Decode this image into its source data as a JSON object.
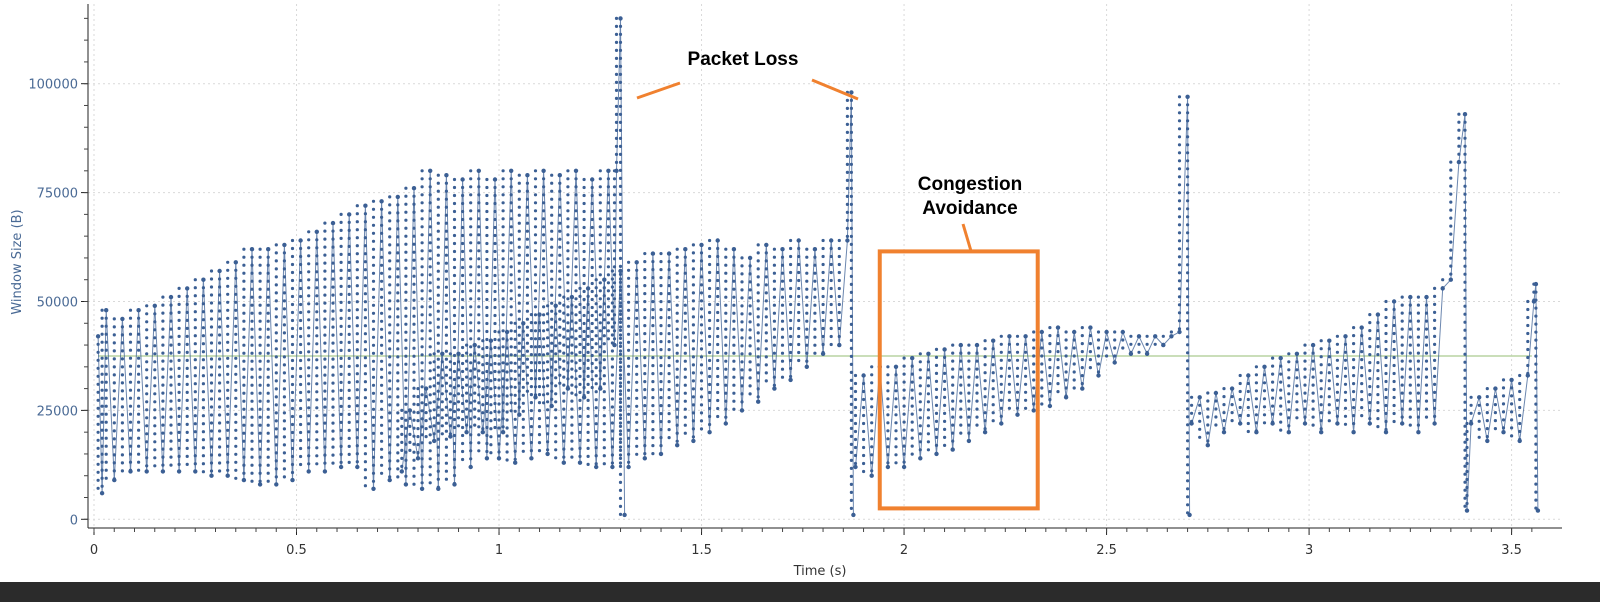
{
  "chart_data": {
    "type": "line",
    "xlabel": "Time (s)",
    "ylabel": "Window Size (B)",
    "xlim": [
      0,
      3.58
    ],
    "ylim": [
      -2000,
      116000
    ],
    "xticks": [
      "0",
      "0.5",
      "1",
      "1.5",
      "2",
      "2.5",
      "3",
      "3.5"
    ],
    "xtick_values": [
      0,
      0.5,
      1,
      1.5,
      2,
      2.5,
      3,
      3.5
    ],
    "yticks": [
      "0",
      "25000",
      "50000",
      "75000",
      "100000"
    ],
    "ytick_values": [
      0,
      25000,
      50000,
      75000,
      100000
    ],
    "grid": true,
    "series": [
      {
        "color": "#3b5f94",
        "points": [
          [
            0.01,
            42000
          ],
          [
            0.02,
            6000
          ],
          [
            0.03,
            48000
          ],
          [
            0.05,
            9000
          ],
          [
            0.07,
            46000
          ],
          [
            0.09,
            11000
          ],
          [
            0.11,
            48000
          ],
          [
            0.13,
            11000
          ],
          [
            0.15,
            49000
          ],
          [
            0.17,
            11000
          ],
          [
            0.19,
            51000
          ],
          [
            0.21,
            11000
          ],
          [
            0.23,
            53000
          ],
          [
            0.25,
            11000
          ],
          [
            0.27,
            55000
          ],
          [
            0.29,
            10000
          ],
          [
            0.31,
            57000
          ],
          [
            0.33,
            10000
          ],
          [
            0.35,
            59000
          ],
          [
            0.37,
            9000
          ],
          [
            0.39,
            62000
          ],
          [
            0.41,
            8000
          ],
          [
            0.43,
            62000
          ],
          [
            0.45,
            8000
          ],
          [
            0.47,
            63000
          ],
          [
            0.49,
            9000
          ],
          [
            0.51,
            64000
          ],
          [
            0.53,
            11000
          ],
          [
            0.55,
            66000
          ],
          [
            0.57,
            11000
          ],
          [
            0.59,
            68000
          ],
          [
            0.61,
            12000
          ],
          [
            0.63,
            70000
          ],
          [
            0.65,
            12000
          ],
          [
            0.67,
            72000
          ],
          [
            0.69,
            7000
          ],
          [
            0.71,
            73000
          ],
          [
            0.73,
            9000
          ],
          [
            0.75,
            74000
          ],
          [
            0.77,
            8000
          ],
          [
            0.79,
            76000
          ],
          [
            0.81,
            7000
          ],
          [
            0.83,
            80000
          ],
          [
            0.85,
            7000
          ],
          [
            0.87,
            79000
          ],
          [
            0.89,
            8000
          ],
          [
            0.91,
            78000
          ],
          [
            0.93,
            12000
          ],
          [
            0.95,
            80000
          ],
          [
            0.97,
            14000
          ],
          [
            0.99,
            78000
          ],
          [
            1.01,
            20000
          ],
          [
            1.03,
            80000
          ],
          [
            1.05,
            24000
          ],
          [
            1.07,
            79000
          ],
          [
            1.09,
            28000
          ],
          [
            1.11,
            80000
          ],
          [
            1.13,
            26000
          ],
          [
            1.15,
            79000
          ],
          [
            1.17,
            30000
          ],
          [
            1.19,
            80000
          ],
          [
            1.21,
            28000
          ],
          [
            1.23,
            78000
          ],
          [
            1.25,
            30000
          ],
          [
            1.27,
            80000
          ],
          [
            1.285,
            40000
          ],
          [
            1.29,
            80000
          ],
          [
            1.3,
            115000
          ],
          [
            1.31,
            1000
          ]
        ]
      },
      {
        "color": "#3b5f94",
        "points": [
          [
            0.76,
            11000
          ],
          [
            0.78,
            25000
          ],
          [
            0.8,
            14000
          ],
          [
            0.82,
            30000
          ],
          [
            0.84,
            18000
          ],
          [
            0.86,
            38000
          ],
          [
            0.88,
            19000
          ],
          [
            0.9,
            38000
          ],
          [
            0.92,
            20000
          ],
          [
            0.94,
            40000
          ],
          [
            0.96,
            20000
          ],
          [
            0.98,
            41000
          ],
          [
            1.0,
            14000
          ],
          [
            1.02,
            43000
          ],
          [
            1.04,
            13000
          ],
          [
            1.06,
            45000
          ],
          [
            1.08,
            14000
          ],
          [
            1.1,
            47000
          ],
          [
            1.12,
            15000
          ],
          [
            1.14,
            49000
          ],
          [
            1.16,
            13000
          ],
          [
            1.18,
            51000
          ],
          [
            1.2,
            13000
          ],
          [
            1.22,
            53000
          ],
          [
            1.24,
            12000
          ],
          [
            1.26,
            55000
          ],
          [
            1.28,
            12000
          ],
          [
            1.3,
            57000
          ],
          [
            1.32,
            12000
          ],
          [
            1.34,
            59000
          ],
          [
            1.36,
            14000
          ],
          [
            1.38,
            61000
          ],
          [
            1.4,
            15000
          ],
          [
            1.42,
            61000
          ],
          [
            1.44,
            17000
          ],
          [
            1.46,
            62000
          ],
          [
            1.48,
            18000
          ],
          [
            1.5,
            63000
          ],
          [
            1.52,
            20000
          ],
          [
            1.54,
            64000
          ],
          [
            1.56,
            22000
          ],
          [
            1.58,
            62000
          ],
          [
            1.6,
            25000
          ],
          [
            1.62,
            60000
          ],
          [
            1.64,
            27000
          ],
          [
            1.66,
            63000
          ],
          [
            1.68,
            30000
          ],
          [
            1.7,
            62000
          ],
          [
            1.72,
            32000
          ],
          [
            1.74,
            64000
          ],
          [
            1.76,
            35000
          ],
          [
            1.78,
            62000
          ],
          [
            1.8,
            38000
          ],
          [
            1.82,
            64000
          ],
          [
            1.84,
            40000
          ],
          [
            1.86,
            64000
          ],
          [
            1.87,
            98000
          ],
          [
            1.875,
            1000
          ]
        ]
      },
      {
        "color": "#3b5f94",
        "points": [
          [
            1.88,
            12000
          ],
          [
            1.9,
            33000
          ],
          [
            1.92,
            10000
          ],
          [
            1.94,
            35000
          ],
          [
            1.96,
            12000
          ],
          [
            1.98,
            35000
          ],
          [
            2.0,
            12000
          ],
          [
            2.02,
            37000
          ],
          [
            2.04,
            14000
          ],
          [
            2.06,
            38000
          ],
          [
            2.08,
            15000
          ],
          [
            2.1,
            39000
          ],
          [
            2.12,
            16000
          ],
          [
            2.14,
            40000
          ],
          [
            2.16,
            18000
          ],
          [
            2.18,
            40000
          ],
          [
            2.2,
            20000
          ],
          [
            2.22,
            41000
          ],
          [
            2.24,
            22000
          ],
          [
            2.26,
            42000
          ],
          [
            2.28,
            24000
          ],
          [
            2.3,
            42000
          ],
          [
            2.32,
            25000
          ],
          [
            2.34,
            43000
          ],
          [
            2.36,
            26000
          ],
          [
            2.38,
            44000
          ],
          [
            2.4,
            28000
          ],
          [
            2.42,
            43000
          ],
          [
            2.44,
            30000
          ],
          [
            2.46,
            44000
          ],
          [
            2.48,
            33000
          ],
          [
            2.5,
            43000
          ],
          [
            2.52,
            36000
          ],
          [
            2.54,
            43000
          ],
          [
            2.56,
            38000
          ],
          [
            2.58,
            42000
          ],
          [
            2.6,
            38000
          ],
          [
            2.62,
            42000
          ],
          [
            2.64,
            40000
          ],
          [
            2.66,
            42000
          ],
          [
            2.68,
            43000
          ],
          [
            2.7,
            97000
          ],
          [
            2.705,
            1000
          ]
        ]
      },
      {
        "color": "#3b5f94",
        "points": [
          [
            2.71,
            22000
          ],
          [
            2.73,
            28000
          ],
          [
            2.75,
            17000
          ],
          [
            2.77,
            29000
          ],
          [
            2.79,
            20000
          ],
          [
            2.81,
            30000
          ],
          [
            2.83,
            22000
          ],
          [
            2.85,
            33000
          ],
          [
            2.87,
            20000
          ],
          [
            2.89,
            35000
          ],
          [
            2.91,
            22000
          ],
          [
            2.93,
            37000
          ],
          [
            2.95,
            20000
          ],
          [
            2.97,
            38000
          ],
          [
            2.99,
            22000
          ],
          [
            3.01,
            40000
          ],
          [
            3.03,
            20000
          ],
          [
            3.05,
            41000
          ],
          [
            3.07,
            22000
          ],
          [
            3.09,
            42000
          ],
          [
            3.11,
            20000
          ],
          [
            3.13,
            44000
          ],
          [
            3.15,
            22000
          ],
          [
            3.17,
            47000
          ],
          [
            3.19,
            20000
          ],
          [
            3.21,
            50000
          ],
          [
            3.23,
            22000
          ],
          [
            3.25,
            51000
          ],
          [
            3.27,
            20000
          ],
          [
            3.29,
            51000
          ],
          [
            3.31,
            22000
          ],
          [
            3.33,
            53000
          ],
          [
            3.35,
            55000
          ],
          [
            3.37,
            82000
          ],
          [
            3.385,
            93000
          ],
          [
            3.39,
            2000
          ],
          [
            3.4,
            22000
          ],
          [
            3.42,
            28000
          ],
          [
            3.44,
            18000
          ],
          [
            3.46,
            30000
          ],
          [
            3.48,
            20000
          ],
          [
            3.5,
            32000
          ],
          [
            3.52,
            18000
          ],
          [
            3.54,
            33000
          ],
          [
            3.555,
            50000
          ],
          [
            3.56,
            54000
          ],
          [
            3.565,
            2000
          ]
        ]
      }
    ],
    "reference_line": {
      "color": "#b9d4a2",
      "x": [
        0.01,
        3.55
      ],
      "y": 37500
    },
    "annotations": [
      {
        "text": "Packet Loss",
        "x": 1.72,
        "y": 104000
      },
      {
        "text": "Congestion",
        "x": 2.12,
        "y": 77000
      },
      {
        "text": "Avoidance",
        "x": 2.12,
        "y": 71000
      }
    ],
    "highlight_box": {
      "color": "#f0812f",
      "x": [
        1.94,
        2.33
      ],
      "y": [
        2500,
        61500
      ]
    }
  }
}
